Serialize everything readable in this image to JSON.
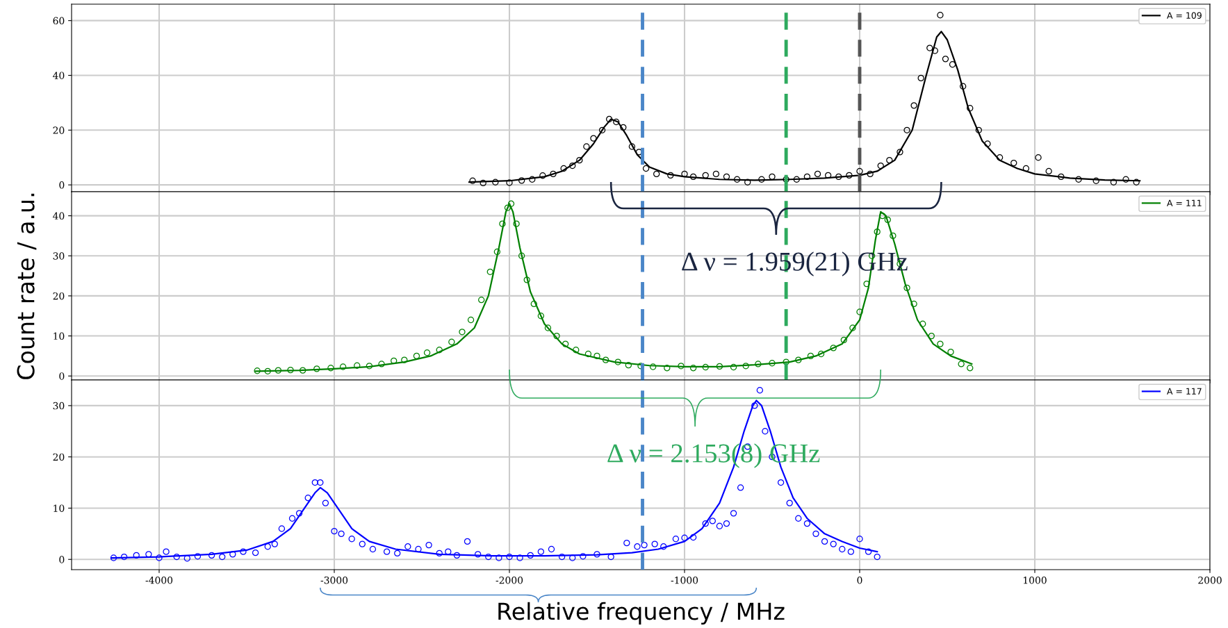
{
  "chart_data": [
    {
      "type": "line",
      "xlim": [
        -4500,
        2000
      ],
      "xticks": [
        -4000,
        -3000,
        -2000,
        -1000,
        0,
        1000,
        2000
      ],
      "ylim": [
        -2.5,
        66
      ],
      "yticks": [
        0,
        20,
        40,
        60
      ],
      "tick_labels": "y",
      "grid": true,
      "legend": "top right",
      "annotations": [
        "Δ ν = 1.959(21) GHz"
      ],
      "ref_lines": [
        {
          "axis": "x",
          "value": -1240,
          "color": "#4a86c8",
          "line_style": "dashed"
        },
        {
          "axis": "x",
          "value": -420,
          "color": "#2eaa5e",
          "line_style": "dashed"
        },
        {
          "axis": "x",
          "value": 0,
          "color": "#555555",
          "line_style": "dashed"
        }
      ],
      "series": [
        {
          "type": "scatter",
          "marker": "circle",
          "color": "#000000",
          "x": [
            -2210,
            -2150,
            -2080,
            -2000,
            -1930,
            -1870,
            -1810,
            -1750,
            -1690,
            -1640,
            -1600,
            -1560,
            -1520,
            -1470,
            -1430,
            -1390,
            -1350,
            -1300,
            -1260,
            -1220,
            -1160,
            -1080,
            -1000,
            -950,
            -880,
            -820,
            -760,
            -700,
            -640,
            -560,
            -500,
            -420,
            -360,
            -300,
            -240,
            -180,
            -120,
            -60,
            0,
            60,
            120,
            170,
            230,
            270,
            310,
            350,
            400,
            430,
            460,
            490,
            530,
            590,
            630,
            680,
            730,
            800,
            880,
            950,
            1020,
            1080,
            1150,
            1250,
            1350,
            1450,
            1520,
            1580
          ],
          "values": [
            1.5,
            0.7,
            1,
            0.8,
            1.6,
            2,
            3.4,
            4,
            6,
            7,
            9,
            14,
            17,
            20,
            24,
            23,
            21,
            14,
            12,
            6,
            4,
            3.5,
            4,
            3,
            3.5,
            4,
            3,
            2,
            1,
            2,
            3,
            2,
            2,
            3,
            4,
            3.5,
            3,
            3.5,
            5,
            4,
            7,
            9,
            12,
            20,
            29,
            39,
            50,
            49,
            62,
            46,
            44,
            36,
            28,
            20,
            15,
            10,
            8,
            6,
            10,
            5,
            3,
            2,
            1.5,
            1,
            2,
            1
          ]
        },
        {
          "type": "line",
          "name": "A = 109",
          "color": "#000000",
          "x": [
            -2230,
            -2000,
            -1800,
            -1700,
            -1600,
            -1520,
            -1460,
            -1420,
            -1380,
            -1330,
            -1270,
            -1200,
            -1100,
            -1000,
            -800,
            -600,
            -400,
            -200,
            0,
            100,
            200,
            300,
            380,
            440,
            466,
            500,
            560,
            620,
            700,
            800,
            900,
            1000,
            1200,
            1400,
            1600
          ],
          "values": [
            1,
            1.5,
            3,
            5,
            9,
            15,
            21,
            24,
            23,
            18,
            11,
            6.5,
            4,
            3,
            2,
            1.7,
            2,
            2.5,
            3.5,
            5,
            9,
            20,
            40,
            54,
            56,
            53,
            42,
            28,
            16,
            9,
            6,
            4,
            2.5,
            1.8,
            1.5
          ]
        }
      ]
    },
    {
      "type": "line",
      "xlim": [
        -4500,
        2000
      ],
      "xticks": [
        -4000,
        -3000,
        -2000,
        -1000,
        0,
        1000,
        2000
      ],
      "ylim": [
        -1,
        46
      ],
      "yticks": [
        0,
        10,
        20,
        30,
        40
      ],
      "tick_labels": "y",
      "grid": true,
      "legend": "top right",
      "ylabel": "Count rate / a.u.",
      "annotations": [
        "Δ ν = 2.153(8) GHz"
      ],
      "ref_lines": [
        {
          "axis": "x",
          "value": -1240,
          "color": "#4a86c8",
          "line_style": "dashed"
        },
        {
          "axis": "x",
          "value": -420,
          "color": "#2eaa5e",
          "line_style": "dashed"
        }
      ],
      "series": [
        {
          "type": "scatter",
          "marker": "circle",
          "color": "#008000",
          "x": [
            -3440,
            -3380,
            -3320,
            -3250,
            -3180,
            -3100,
            -3020,
            -2950,
            -2870,
            -2800,
            -2730,
            -2660,
            -2600,
            -2530,
            -2470,
            -2400,
            -2330,
            -2270,
            -2220,
            -2160,
            -2110,
            -2070,
            -2040,
            -2010,
            -1990,
            -1960,
            -1930,
            -1900,
            -1860,
            -1820,
            -1780,
            -1730,
            -1680,
            -1620,
            -1550,
            -1500,
            -1450,
            -1380,
            -1320,
            -1250,
            -1180,
            -1100,
            -1020,
            -950,
            -880,
            -800,
            -720,
            -650,
            -580,
            -500,
            -420,
            -350,
            -280,
            -220,
            -150,
            -90,
            -40,
            0,
            40,
            70,
            100,
            130,
            160,
            190,
            230,
            270,
            310,
            360,
            410,
            460,
            520,
            580,
            630
          ],
          "values": [
            1.3,
            1.2,
            1.4,
            1.5,
            1.4,
            1.8,
            2,
            2.3,
            2.6,
            2.5,
            3,
            3.8,
            4,
            5,
            5.8,
            6.5,
            8.5,
            11,
            14,
            19,
            26,
            31,
            38,
            42,
            43,
            38,
            30,
            24,
            18,
            15,
            12,
            10,
            8,
            6.5,
            5.5,
            5,
            4,
            3.5,
            2.7,
            2.5,
            2.3,
            2,
            2.5,
            2,
            2.2,
            2.4,
            2.2,
            2.5,
            3,
            3.2,
            3.5,
            4,
            5,
            5.5,
            7,
            9,
            12,
            16,
            23,
            30,
            36,
            40,
            39,
            35,
            28,
            22,
            18,
            13,
            10,
            8,
            6,
            3,
            2
          ]
        },
        {
          "type": "line",
          "name": "A = 111",
          "color": "#008000",
          "x": [
            -3450,
            -3200,
            -3000,
            -2800,
            -2600,
            -2450,
            -2300,
            -2200,
            -2120,
            -2060,
            -2020,
            -2000,
            -1980,
            -1940,
            -1880,
            -1800,
            -1700,
            -1600,
            -1400,
            -1200,
            -1000,
            -800,
            -600,
            -400,
            -250,
            -100,
            0,
            50,
            90,
            120,
            150,
            200,
            260,
            330,
            420,
            520,
            640
          ],
          "values": [
            1.2,
            1.4,
            1.8,
            2.3,
            3.5,
            5,
            8,
            12,
            20,
            32,
            41,
            43,
            41,
            32,
            21,
            13,
            8,
            5.5,
            3.5,
            2.6,
            2.3,
            2.3,
            2.8,
            3.5,
            5,
            8,
            14,
            22,
            34,
            41,
            40,
            33,
            23,
            14,
            8,
            5,
            3
          ]
        }
      ]
    },
    {
      "type": "line",
      "xlim": [
        -4500,
        2000
      ],
      "xticks": [
        -4000,
        -3000,
        -2000,
        -1000,
        0,
        1000,
        2000
      ],
      "ylim": [
        -2,
        35
      ],
      "yticks": [
        0,
        10,
        20,
        30
      ],
      "grid": true,
      "legend": "top right",
      "xlabel": "Relative frequency / MHz",
      "ref_lines": [
        {
          "axis": "x",
          "value": -1240,
          "color": "#4a86c8",
          "line_style": "dashed"
        }
      ],
      "series": [
        {
          "type": "scatter",
          "marker": "circle",
          "color": "#0000ff",
          "x": [
            -4260,
            -4200,
            -4130,
            -4060,
            -4000,
            -3960,
            -3900,
            -3840,
            -3780,
            -3700,
            -3640,
            -3580,
            -3520,
            -3450,
            -3380,
            -3340,
            -3300,
            -3240,
            -3200,
            -3150,
            -3110,
            -3080,
            -3050,
            -3000,
            -2960,
            -2900,
            -2840,
            -2780,
            -2700,
            -2640,
            -2580,
            -2520,
            -2460,
            -2400,
            -2350,
            -2300,
            -2240,
            -2180,
            -2120,
            -2060,
            -2000,
            -1940,
            -1880,
            -1820,
            -1760,
            -1700,
            -1640,
            -1580,
            -1500,
            -1420,
            -1330,
            -1270,
            -1230,
            -1170,
            -1120,
            -1050,
            -1000,
            -950,
            -880,
            -840,
            -800,
            -760,
            -720,
            -680,
            -640,
            -600,
            -570,
            -540,
            -500,
            -450,
            -400,
            -350,
            -300,
            -250,
            -200,
            -150,
            -100,
            -50,
            0,
            50,
            100
          ],
          "values": [
            0.3,
            0.5,
            0.8,
            1,
            0.3,
            1.5,
            0.5,
            0.2,
            0.6,
            0.8,
            0.5,
            1,
            1.5,
            1.3,
            2.5,
            3,
            6,
            8,
            9,
            12,
            15,
            15,
            11,
            5.5,
            5,
            4,
            3,
            2,
            1.5,
            1.2,
            2.5,
            2,
            2.8,
            1.2,
            1.5,
            0.8,
            3.5,
            1,
            0.5,
            0.3,
            0.5,
            0.3,
            0.8,
            1.5,
            2,
            0.5,
            0.3,
            0.6,
            1,
            0.5,
            3.2,
            2.5,
            2.8,
            3,
            2.5,
            4,
            4.2,
            4.3,
            7,
            7.5,
            6.5,
            7,
            9,
            14,
            22,
            30,
            33,
            25,
            20,
            15,
            11,
            8,
            7,
            5,
            3.5,
            3,
            2,
            1.5,
            4,
            1.5,
            0.5
          ]
        },
        {
          "type": "line",
          "name": "A = 117",
          "color": "#0000ff",
          "x": [
            -4270,
            -4000,
            -3700,
            -3500,
            -3350,
            -3250,
            -3170,
            -3110,
            -3080,
            -3040,
            -2980,
            -2900,
            -2800,
            -2650,
            -2400,
            -2100,
            -1800,
            -1500,
            -1300,
            -1150,
            -1000,
            -900,
            -800,
            -720,
            -660,
            -610,
            -590,
            -560,
            -510,
            -450,
            -380,
            -300,
            -200,
            -100,
            0,
            100
          ],
          "values": [
            0.3,
            0.5,
            1,
            1.8,
            3.5,
            6,
            10,
            13,
            14,
            13,
            10,
            6,
            3.5,
            2,
            1,
            0.7,
            0.7,
            0.9,
            1.3,
            2,
            3.5,
            6,
            11,
            18,
            25,
            30,
            31,
            30,
            25,
            18,
            12,
            8,
            5,
            3.5,
            2.2,
            1.5
          ]
        }
      ]
    }
  ]
}
